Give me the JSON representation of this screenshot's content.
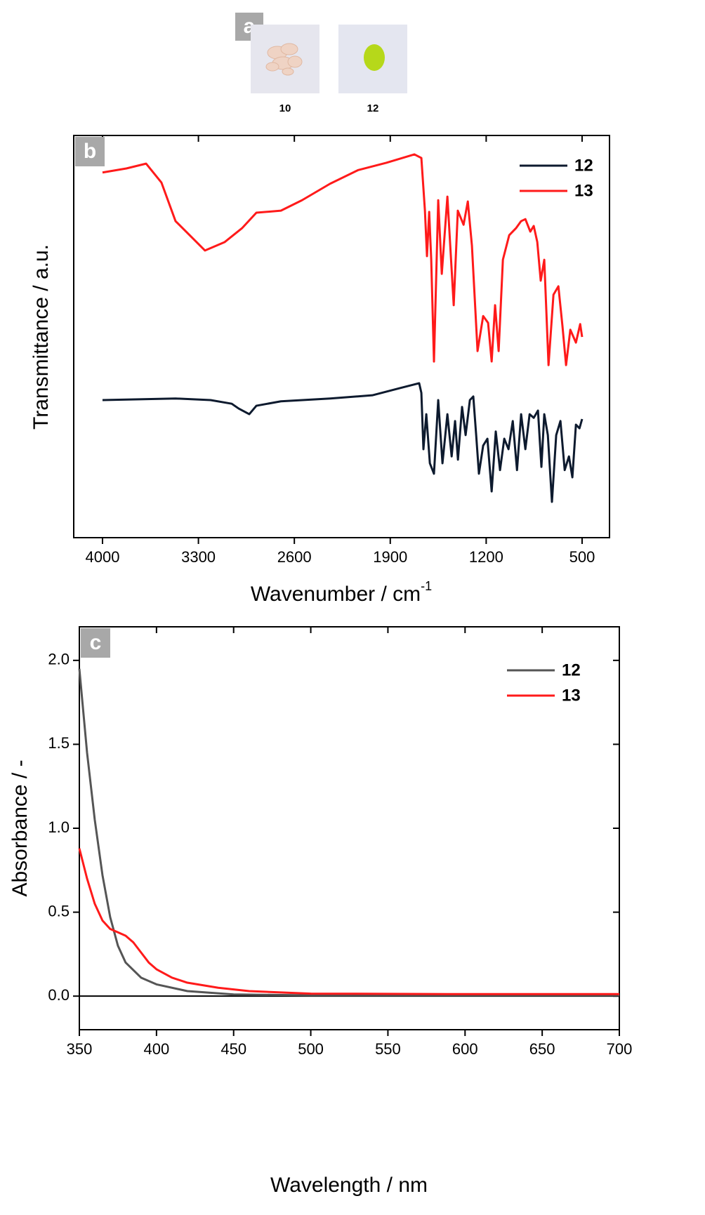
{
  "images": {
    "panel_label": "a",
    "captions": [
      "10",
      "12"
    ]
  },
  "chart_data": [
    {
      "type": "line",
      "panel_label": "b",
      "x_label": "Wavenumber / cm",
      "x_label_superscript": "-1",
      "y_label": "Transmittance / a.u.",
      "xlim": [
        4210,
        300
      ],
      "ylim": [
        0,
        100
      ],
      "xticks": [
        4000,
        3300,
        2600,
        1900,
        1200,
        500
      ],
      "legend": "upper right",
      "series": [
        {
          "name": "12",
          "color": "#0d1a2e",
          "x": [
            4000,
            3467,
            3211,
            3057,
            3006,
            2929,
            2877,
            2698,
            2339,
            2031,
            1827,
            1689,
            1673,
            1658,
            1637,
            1611,
            1581,
            1550,
            1519,
            1483,
            1452,
            1427,
            1406,
            1376,
            1350,
            1319,
            1294,
            1273,
            1253,
            1222,
            1191,
            1160,
            1130,
            1099,
            1068,
            1037,
            1006,
            975,
            945,
            914,
            883,
            853,
            822,
            797,
            776,
            750,
            720,
            689,
            658,
            627,
            596,
            571,
            545,
            519,
            500
          ],
          "values": [
            34.2,
            34.6,
            34.2,
            33.3,
            32.1,
            30.7,
            32.8,
            33.9,
            34.6,
            35.4,
            37.2,
            38.4,
            36.0,
            22.0,
            30.7,
            18.5,
            15.9,
            34.2,
            18.5,
            30.7,
            20.2,
            29.0,
            19.4,
            32.5,
            25.5,
            34.2,
            35.1,
            25.5,
            15.9,
            22.9,
            24.6,
            11.5,
            26.4,
            16.8,
            24.6,
            22.0,
            29.0,
            16.8,
            30.7,
            22.0,
            30.7,
            29.8,
            31.6,
            17.6,
            30.7,
            25.5,
            8.9,
            25.5,
            29.0,
            16.8,
            20.2,
            15.0,
            28.1,
            27.2,
            29.5
          ]
        },
        {
          "name": "13",
          "color": "#ff1a1a",
          "x": [
            4000,
            3826,
            3682,
            3570,
            3467,
            3364,
            3252,
            3108,
            2980,
            2877,
            2698,
            2544,
            2339,
            2134,
            1929,
            1724,
            1673,
            1647,
            1632,
            1616,
            1601,
            1581,
            1550,
            1524,
            1483,
            1437,
            1407,
            1365,
            1334,
            1304,
            1263,
            1222,
            1186,
            1160,
            1135,
            1109,
            1078,
            1032,
            981,
            945,
            914,
            878,
            853,
            827,
            802,
            776,
            745,
            709,
            673,
            643,
            617,
            586,
            545,
            514,
            500
          ],
          "values": [
            90.8,
            91.8,
            93.0,
            88.3,
            78.7,
            75.2,
            71.4,
            73.5,
            77.0,
            80.8,
            81.3,
            83.9,
            88.0,
            91.4,
            93.2,
            95.3,
            94.4,
            81.3,
            70.0,
            81.0,
            69.1,
            43.8,
            83.9,
            65.6,
            84.8,
            57.8,
            81.3,
            77.8,
            83.6,
            72.6,
            46.4,
            55.1,
            53.4,
            43.8,
            57.8,
            46.4,
            69.1,
            75.2,
            77.0,
            78.7,
            79.2,
            76.1,
            77.5,
            73.5,
            63.9,
            69.1,
            42.9,
            60.4,
            62.5,
            52.5,
            42.9,
            51.7,
            48.5,
            53.1,
            49.9
          ]
        }
      ]
    },
    {
      "type": "line",
      "panel_label": "c",
      "x_label": "Wavelength / nm",
      "y_label": "Absorbance / -",
      "xlim": [
        350,
        700
      ],
      "ylim": [
        -0.2,
        2.2
      ],
      "xticks": [
        350,
        400,
        450,
        500,
        550,
        600,
        650,
        700
      ],
      "yticks": [
        {
          "value": 0,
          "label": "0.0"
        },
        0.5,
        {
          "value": 1,
          "label": "1.0"
        },
        1.5,
        {
          "value": 2,
          "label": "2.0"
        }
      ],
      "legend": "upper right",
      "series": [
        {
          "name": "12",
          "color": "#555555",
          "x": [
            350,
            355,
            360,
            365,
            370,
            375,
            380,
            390,
            400,
            420,
            450,
            500,
            600,
            700
          ],
          "values": [
            1.95,
            1.45,
            1.05,
            0.72,
            0.47,
            0.3,
            0.2,
            0.11,
            0.07,
            0.03,
            0.01,
            0.005,
            0.005,
            0.005
          ]
        },
        {
          "name": "13",
          "color": "#ff1a1a",
          "x": [
            350,
            355,
            360,
            365,
            370,
            375,
            380,
            385,
            390,
            395,
            400,
            410,
            420,
            440,
            460,
            500,
            600,
            700
          ],
          "values": [
            0.88,
            0.7,
            0.55,
            0.45,
            0.4,
            0.38,
            0.36,
            0.32,
            0.26,
            0.2,
            0.16,
            0.11,
            0.08,
            0.05,
            0.03,
            0.015,
            0.012,
            0.012
          ]
        }
      ]
    }
  ]
}
